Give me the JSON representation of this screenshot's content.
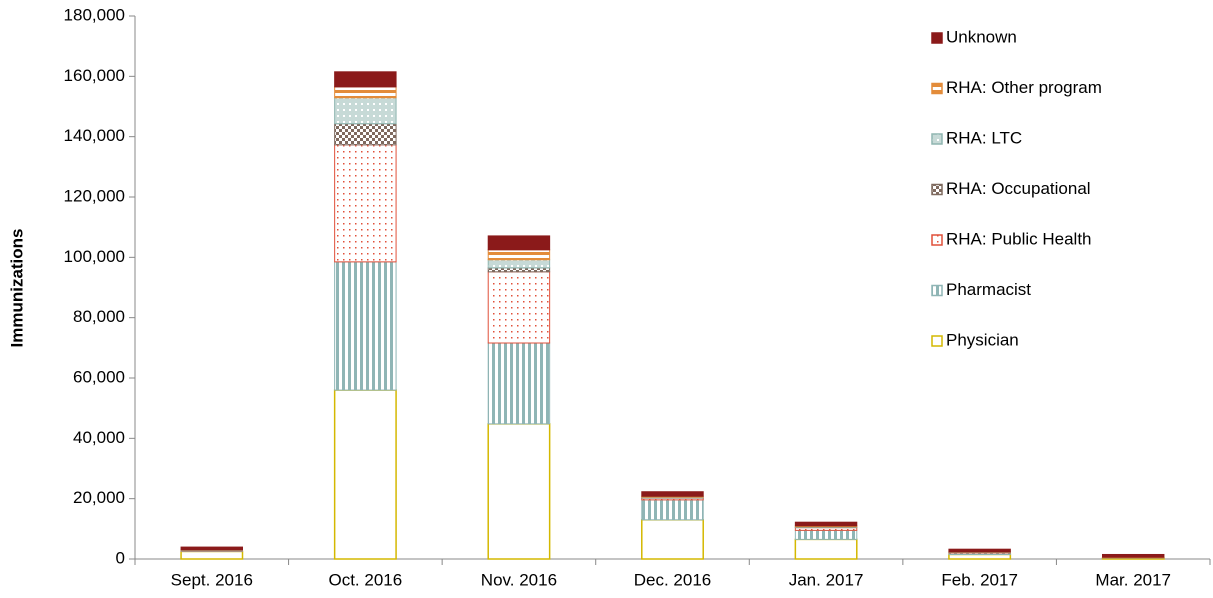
{
  "chart_data": {
    "type": "stacked-bar",
    "y_label": "Immunizations",
    "categories": [
      "Sept. 2016",
      "Oct. 2016",
      "Nov. 2016",
      "Dec. 2016",
      "Jan. 2017",
      "Feb. 2017",
      "Mar. 2017"
    ],
    "series": [
      {
        "name": "Physician",
        "color": "#d4b800",
        "pattern": "outline",
        "values": [
          2500,
          56000,
          44800,
          13000,
          6500,
          1500,
          300
        ]
      },
      {
        "name": "Pharmacist",
        "color": "#8fb5b5",
        "pattern": "vstripe",
        "values": [
          200,
          42500,
          26800,
          6600,
          3000,
          500,
          100
        ]
      },
      {
        "name": "RHA: Public Health",
        "color": "#e0503a",
        "pattern": "dots",
        "values": [
          100,
          38800,
          23600,
          600,
          900,
          100,
          50
        ]
      },
      {
        "name": "RHA: Occupational",
        "color": "#7f6a5f",
        "pattern": "checker",
        "values": [
          50,
          7000,
          1300,
          100,
          100,
          50,
          20
        ]
      },
      {
        "name": "RHA: LTC",
        "color": "#8fb5b0",
        "pattern": "cross",
        "values": [
          100,
          8600,
          2700,
          200,
          200,
          100,
          30
        ]
      },
      {
        "name": "RHA: Other program",
        "color": "#e38c3a",
        "pattern": "hstripe",
        "values": [
          100,
          3600,
          3300,
          300,
          300,
          100,
          100
        ]
      },
      {
        "name": "Unknown",
        "color": "#8b1a1a",
        "pattern": "solid",
        "values": [
          900,
          5000,
          4600,
          1500,
          1200,
          900,
          900
        ]
      }
    ],
    "ylim": [
      0,
      180000
    ],
    "yticks": [
      0,
      {
        "value": 20000,
        "label": "20,000"
      },
      {
        "value": 40000,
        "label": "40,000"
      },
      {
        "value": 60000,
        "label": "60,000"
      },
      {
        "value": 80000,
        "label": "80,000"
      },
      {
        "value": 100000,
        "label": "100,000"
      },
      {
        "value": 120000,
        "label": "120,000"
      },
      {
        "value": 140000,
        "label": "140,000"
      },
      {
        "value": 160000,
        "label": "160,000"
      },
      {
        "value": 180000,
        "label": "180,000"
      }
    ],
    "legend": "right"
  }
}
